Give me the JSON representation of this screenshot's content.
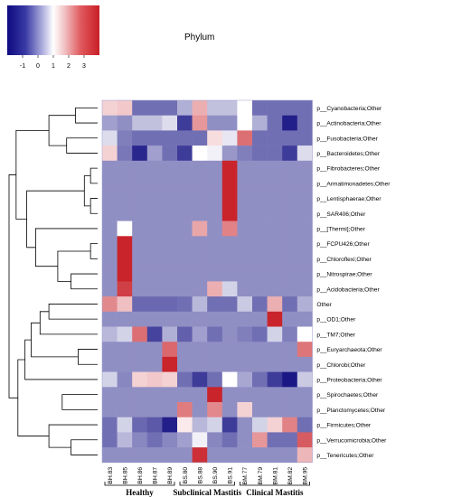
{
  "chart_data": {
    "type": "heatmap",
    "title": "Phylum",
    "colorbar": {
      "min": -2,
      "max": 4,
      "ticks": [
        -1,
        0,
        1,
        2,
        3
      ],
      "tick_labels": [
        "-1",
        "0",
        "1",
        "2",
        "3"
      ],
      "colors": {
        "low": "#0d0a7f",
        "mid": "#ffffff",
        "high": "#c81f26",
        "base": "#7272c6"
      }
    },
    "columns": [
      "BH.83",
      "BH.85",
      "BH.86",
      "BH.87",
      "BH.89",
      "BS.80",
      "BS.88",
      "BS.90",
      "BS.91",
      "BM.77",
      "BM.79",
      "BM.81",
      "BM.82",
      "BM.95"
    ],
    "rows": [
      "p__Cyanobacteria;Other",
      "p__Actinobacteria;Other",
      "p__Fusobacteria;Other",
      "p__Bacteroidetes;Other",
      "p__Fibrobacteres;Other",
      "p__Armatimonadetes;Other",
      "p__Lentisphaerae;Other",
      "p__SAR406;Other",
      "p__[Thermi];Other",
      "p__FCPU426;Other",
      "p__Chloroflexi;Other",
      "p__Nitrospirae;Other",
      "p__Acidobacteria;Other",
      "Other",
      "p__OD1;Other",
      "p__TM7;Other",
      "p__Euryarchaeota;Other",
      "p__Chlorobi;Other",
      "p__Proteobacteria;Other",
      "p__Spirochaetes;Other",
      "p__Planctomycetes;Other",
      "p__Firmicutes;Other",
      "p__Verrucomicrobia;Other",
      "p__Tenericutes;Other"
    ],
    "values": [
      [
        1.3,
        1.4,
        -0.6,
        -0.6,
        -0.6,
        0.2,
        1.7,
        0.4,
        0.4,
        1.0,
        -0.6,
        -0.6,
        -0.6,
        -0.6
      ],
      [
        0.0,
        -0.2,
        0.4,
        0.4,
        0.7,
        -1.3,
        2.0,
        -0.2,
        -0.2,
        1.0,
        0.2,
        -0.6,
        -1.7,
        -0.6
      ],
      [
        0.7,
        -0.4,
        -0.6,
        -0.6,
        -0.6,
        -0.6,
        -0.6,
        1.2,
        0.8,
        2.6,
        -0.6,
        -0.6,
        -0.6,
        -0.6
      ],
      [
        1.3,
        -0.5,
        -1.6,
        0.0,
        -0.6,
        -1.3,
        1.0,
        0.9,
        -0.1,
        -0.4,
        -0.6,
        -0.6,
        -1.3,
        0.7
      ],
      [
        -0.2,
        -0.2,
        -0.2,
        -0.2,
        -0.2,
        -0.2,
        -0.2,
        -0.2,
        3.9,
        -0.2,
        -0.2,
        -0.2,
        -0.2,
        -0.2
      ],
      [
        -0.2,
        -0.2,
        -0.2,
        -0.2,
        -0.2,
        -0.2,
        -0.2,
        -0.2,
        3.9,
        -0.2,
        -0.2,
        -0.2,
        -0.2,
        -0.2
      ],
      [
        -0.2,
        -0.2,
        -0.2,
        -0.2,
        -0.2,
        -0.2,
        -0.2,
        -0.2,
        3.9,
        -0.2,
        -0.2,
        -0.2,
        -0.2,
        -0.2
      ],
      [
        -0.2,
        -0.2,
        -0.2,
        -0.2,
        -0.2,
        -0.2,
        -0.2,
        -0.2,
        3.9,
        -0.2,
        -0.2,
        -0.2,
        -0.2,
        -0.2
      ],
      [
        -0.2,
        1.0,
        -0.2,
        -0.2,
        -0.2,
        -0.2,
        1.8,
        -0.2,
        2.3,
        -0.2,
        -0.2,
        -0.2,
        -0.2,
        -0.2
      ],
      [
        -0.2,
        3.9,
        -0.2,
        -0.2,
        -0.2,
        -0.2,
        -0.2,
        -0.2,
        -0.2,
        -0.2,
        -0.2,
        -0.2,
        -0.2,
        -0.2
      ],
      [
        -0.2,
        3.9,
        -0.2,
        -0.2,
        -0.2,
        -0.2,
        -0.2,
        -0.2,
        -0.2,
        -0.2,
        -0.2,
        -0.2,
        -0.2,
        -0.2
      ],
      [
        -0.2,
        3.9,
        -0.2,
        -0.2,
        -0.2,
        -0.2,
        -0.2,
        -0.2,
        -0.2,
        -0.2,
        -0.2,
        -0.2,
        -0.2,
        -0.2
      ],
      [
        -0.2,
        3.4,
        -0.2,
        -0.2,
        -0.2,
        -0.2,
        -0.2,
        1.7,
        0.6,
        -0.2,
        -0.2,
        -0.2,
        -0.2,
        -0.2
      ],
      [
        2.2,
        1.5,
        -0.7,
        -0.7,
        -0.7,
        -0.6,
        0.3,
        -0.6,
        -0.6,
        0.5,
        -0.6,
        1.7,
        -0.6,
        0.2
      ],
      [
        -0.2,
        -0.2,
        -0.2,
        -0.2,
        -0.2,
        -0.2,
        -0.2,
        -0.2,
        -0.2,
        -0.2,
        -0.2,
        3.9,
        -0.2,
        -0.2
      ],
      [
        0.3,
        0.6,
        2.6,
        -1.2,
        0.2,
        -0.8,
        0.0,
        -0.6,
        -0.2,
        -0.4,
        -0.6,
        0.6,
        -0.4,
        1.0
      ],
      [
        -0.2,
        -0.2,
        -0.2,
        -0.2,
        2.7,
        -0.2,
        -0.2,
        -0.2,
        -0.2,
        -0.2,
        -0.2,
        -0.2,
        -0.2,
        2.5
      ],
      [
        -0.2,
        -0.2,
        -0.2,
        -0.2,
        3.9,
        -0.2,
        -0.2,
        -0.2,
        -0.2,
        -0.2,
        -0.2,
        -0.2,
        -0.2,
        -0.2
      ],
      [
        0.6,
        -0.3,
        1.3,
        1.4,
        1.3,
        -0.6,
        -1.3,
        -0.6,
        1.0,
        0.1,
        -0.6,
        -1.3,
        -1.8,
        0.5
      ],
      [
        -0.2,
        -0.2,
        -0.2,
        -0.2,
        -0.2,
        -0.2,
        -0.2,
        3.9,
        -0.2,
        -0.2,
        -0.2,
        -0.2,
        -0.2,
        -0.2
      ],
      [
        -0.2,
        -0.2,
        -0.2,
        -0.2,
        -0.2,
        2.4,
        -0.2,
        2.2,
        -0.2,
        1.3,
        -0.2,
        -0.2,
        -0.2,
        -0.2
      ],
      [
        -0.6,
        0.6,
        -0.7,
        -0.9,
        -1.7,
        1.1,
        0.3,
        0.6,
        -1.3,
        -0.2,
        0.6,
        1.3,
        2.3,
        -0.6
      ],
      [
        -0.6,
        0.3,
        -0.3,
        -0.6,
        -0.3,
        0.0,
        0.9,
        -0.3,
        -0.6,
        -0.2,
        2.0,
        -0.6,
        -0.6,
        2.9
      ],
      [
        -0.2,
        -0.2,
        -0.2,
        -0.2,
        -0.2,
        -0.2,
        3.7,
        -0.2,
        -0.2,
        -0.2,
        -0.2,
        -0.2,
        -0.2,
        1.6
      ]
    ],
    "groups": [
      {
        "label": "Healthy",
        "start": 0,
        "end": 4
      },
      {
        "label": "Subclinical Mastitis",
        "start": 5,
        "end": 8
      },
      {
        "label": "Clinical Mastitis",
        "start": 9,
        "end": 13
      }
    ],
    "row_dendrogram": {
      "leaf_order": [
        0,
        1,
        2,
        3,
        4,
        5,
        6,
        7,
        8,
        9,
        10,
        11,
        12,
        13,
        14,
        15,
        16,
        17,
        18,
        19,
        20,
        21,
        22,
        23
      ],
      "merges": [
        [
          0,
          1,
          0.25
        ],
        [
          4,
          5,
          0.08
        ],
        [
          6,
          7,
          0.08
        ],
        [
          -2,
          -3,
          0.15
        ],
        [
          9,
          10,
          0.08
        ],
        [
          11,
          12,
          0.3
        ],
        [
          -5,
          -6,
          0.45
        ],
        [
          16,
          17,
          0.22
        ],
        [
          19,
          20,
          0.4
        ],
        [
          22,
          23,
          0.3
        ],
        [
          -10,
          21,
          0.55
        ],
        [
          2,
          3,
          0.35
        ],
        [
          -1,
          -12,
          0.55
        ],
        [
          8,
          -7,
          0.7
        ],
        [
          13,
          14,
          0.55
        ],
        [
          -15,
          15,
          0.65
        ],
        [
          -16,
          -8,
          0.75
        ],
        [
          -17,
          18,
          0.82
        ],
        [
          -4,
          -14,
          0.8
        ],
        [
          -18,
          -11,
          0.9
        ],
        [
          -13,
          -19,
          0.92
        ],
        [
          -21,
          -20,
          1.0
        ]
      ]
    }
  }
}
